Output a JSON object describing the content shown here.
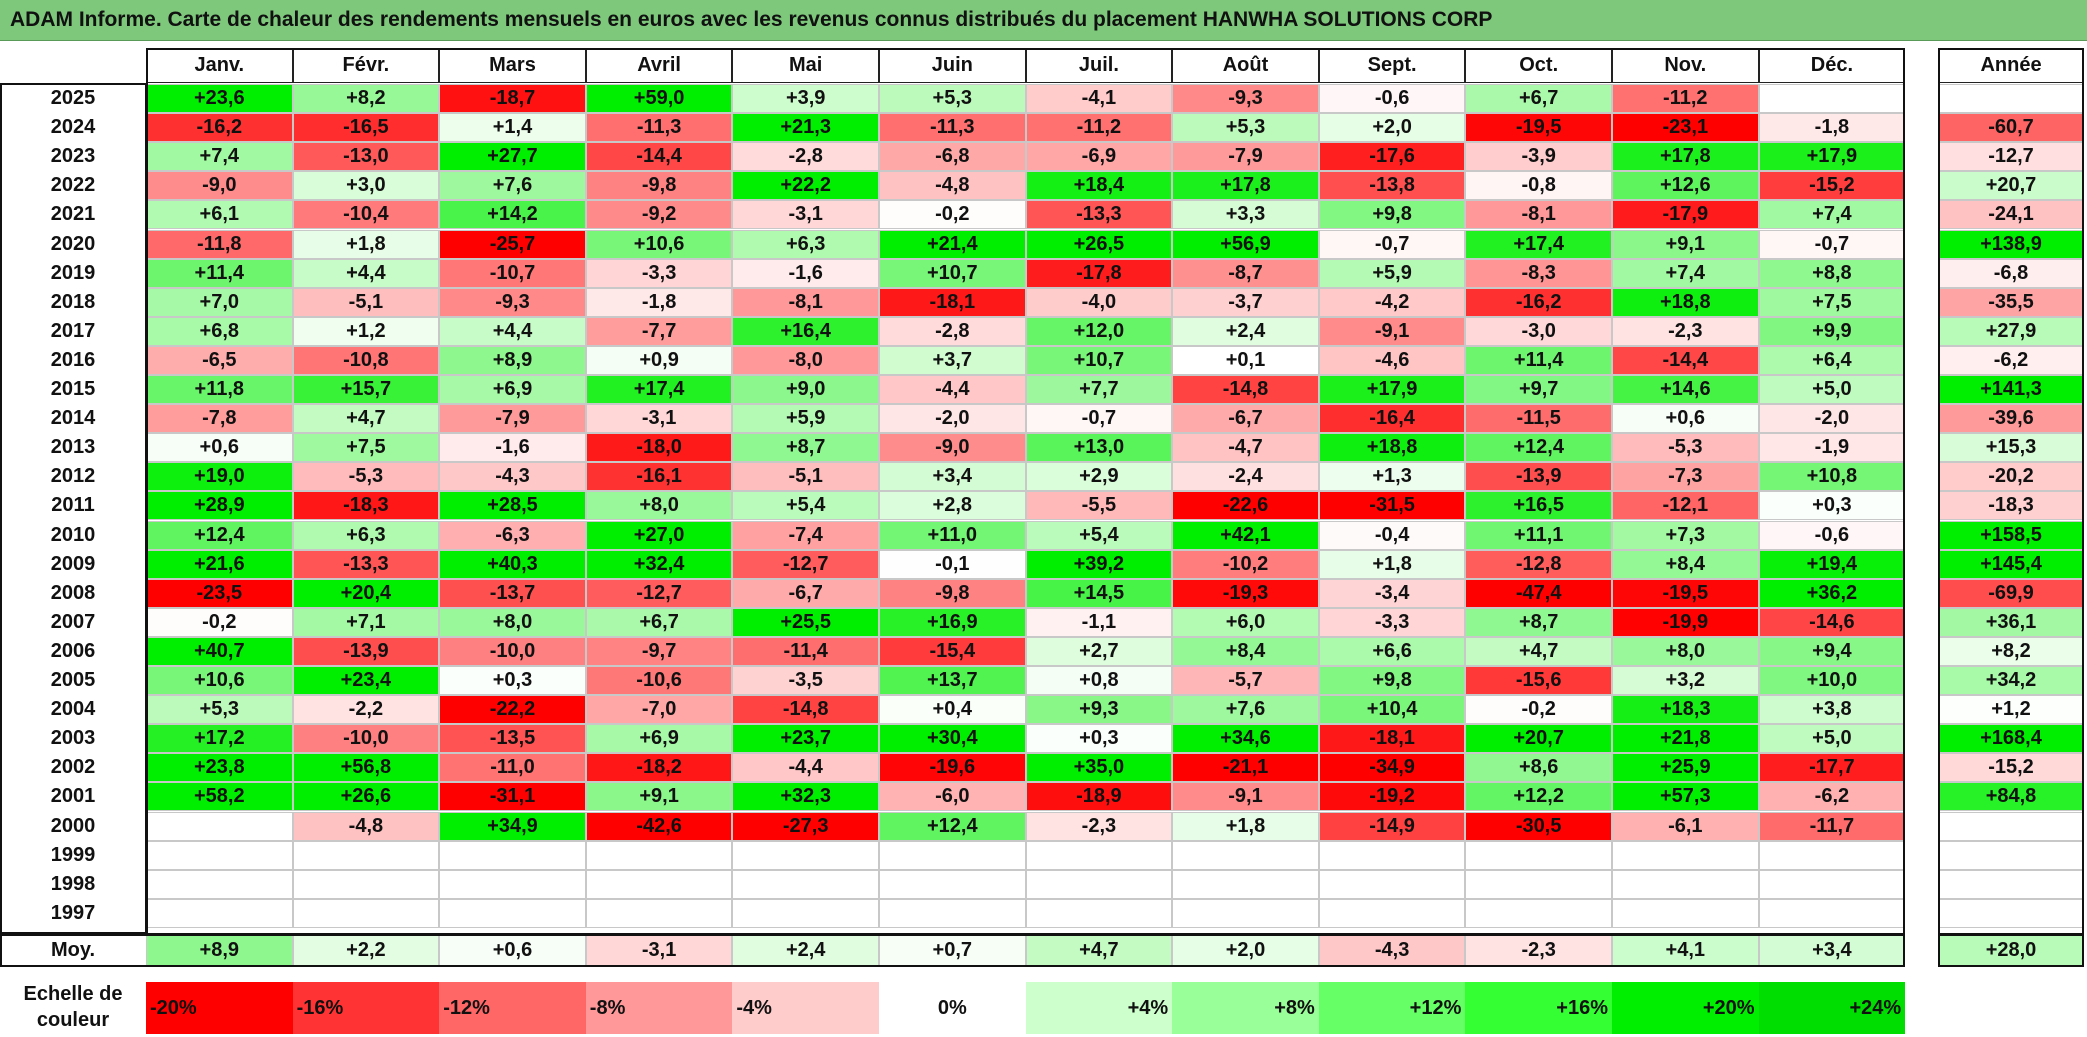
{
  "title": "ADAM Informe. Carte de chaleur des rendements mensuels en euros avec les revenus connus distribués du placement HANWHA SOLUTIONS CORP",
  "chart_data": {
    "type": "heatmap",
    "title": "ADAM Informe. Carte de chaleur des rendements mensuels en euros avec les revenus connus distribués du placement HANWHA SOLUTIONS CORP",
    "columns": [
      "Janv.",
      "Févr.",
      "Mars",
      "Avril",
      "Mai",
      "Juin",
      "Juil.",
      "Août",
      "Sept.",
      "Oct.",
      "Nov.",
      "Déc."
    ],
    "year_column_label": "Année",
    "average_row_label": "Moy.",
    "rows": [
      {
        "year": "2025",
        "values": [
          "+23,6",
          "+8,2",
          "-18,7",
          "+59,0",
          "+3,9",
          "+5,3",
          "-4,1",
          "-9,3",
          "-0,6",
          "+6,7",
          "-11,2",
          ""
        ],
        "annual": ""
      },
      {
        "year": "2024",
        "values": [
          "-16,2",
          "-16,5",
          "+1,4",
          "-11,3",
          "+21,3",
          "-11,3",
          "-11,2",
          "+5,3",
          "+2,0",
          "-19,5",
          "-23,1",
          "-1,8"
        ],
        "annual": "-60,7"
      },
      {
        "year": "2023",
        "values": [
          "+7,4",
          "-13,0",
          "+27,7",
          "-14,4",
          "-2,8",
          "-6,8",
          "-6,9",
          "-7,9",
          "-17,6",
          "-3,9",
          "+17,8",
          "+17,9"
        ],
        "annual": "-12,7"
      },
      {
        "year": "2022",
        "values": [
          "-9,0",
          "+3,0",
          "+7,6",
          "-9,8",
          "+22,2",
          "-4,8",
          "+18,4",
          "+17,8",
          "-13,8",
          "-0,8",
          "+12,6",
          "-15,2"
        ],
        "annual": "+20,7"
      },
      {
        "year": "2021",
        "values": [
          "+6,1",
          "-10,4",
          "+14,2",
          "-9,2",
          "-3,1",
          "-0,2",
          "-13,3",
          "+3,3",
          "+9,8",
          "-8,1",
          "-17,9",
          "+7,4"
        ],
        "annual": "-24,1"
      },
      {
        "year": "2020",
        "values": [
          "-11,8",
          "+1,8",
          "-25,7",
          "+10,6",
          "+6,3",
          "+21,4",
          "+26,5",
          "+56,9",
          "-0,7",
          "+17,4",
          "+9,1",
          "-0,7"
        ],
        "annual": "+138,9"
      },
      {
        "year": "2019",
        "values": [
          "+11,4",
          "+4,4",
          "-10,7",
          "-3,3",
          "-1,6",
          "+10,7",
          "-17,8",
          "-8,7",
          "+5,9",
          "-8,3",
          "+7,4",
          "+8,8"
        ],
        "annual": "-6,8"
      },
      {
        "year": "2018",
        "values": [
          "+7,0",
          "-5,1",
          "-9,3",
          "-1,8",
          "-8,1",
          "-18,1",
          "-4,0",
          "-3,7",
          "-4,2",
          "-16,2",
          "+18,8",
          "+7,5"
        ],
        "annual": "-35,5"
      },
      {
        "year": "2017",
        "values": [
          "+6,8",
          "+1,2",
          "+4,4",
          "-7,7",
          "+16,4",
          "-2,8",
          "+12,0",
          "+2,4",
          "-9,1",
          "-3,0",
          "-2,3",
          "+9,9"
        ],
        "annual": "+27,9"
      },
      {
        "year": "2016",
        "values": [
          "-6,5",
          "-10,8",
          "+8,9",
          "+0,9",
          "-8,0",
          "+3,7",
          "+10,7",
          "+0,1",
          "-4,6",
          "+11,4",
          "-14,4",
          "+6,4"
        ],
        "annual": "-6,2"
      },
      {
        "year": "2015",
        "values": [
          "+11,8",
          "+15,7",
          "+6,9",
          "+17,4",
          "+9,0",
          "-4,4",
          "+7,7",
          "-14,8",
          "+17,9",
          "+9,7",
          "+14,6",
          "+5,0"
        ],
        "annual": "+141,3"
      },
      {
        "year": "2014",
        "values": [
          "-7,8",
          "+4,7",
          "-7,9",
          "-3,1",
          "+5,9",
          "-2,0",
          "-0,7",
          "-6,7",
          "-16,4",
          "-11,5",
          "+0,6",
          "-2,0"
        ],
        "annual": "-39,6"
      },
      {
        "year": "2013",
        "values": [
          "+0,6",
          "+7,5",
          "-1,6",
          "-18,0",
          "+8,7",
          "-9,0",
          "+13,0",
          "-4,7",
          "+18,8",
          "+12,4",
          "-5,3",
          "-1,9"
        ],
        "annual": "+15,3"
      },
      {
        "year": "2012",
        "values": [
          "+19,0",
          "-5,3",
          "-4,3",
          "-16,1",
          "-5,1",
          "+3,4",
          "+2,9",
          "-2,4",
          "+1,3",
          "-13,9",
          "-7,3",
          "+10,8"
        ],
        "annual": "-20,2"
      },
      {
        "year": "2011",
        "values": [
          "+28,9",
          "-18,3",
          "+28,5",
          "+8,0",
          "+5,4",
          "+2,8",
          "-5,5",
          "-22,6",
          "-31,5",
          "+16,5",
          "-12,1",
          "+0,3"
        ],
        "annual": "-18,3"
      },
      {
        "year": "2010",
        "values": [
          "+12,4",
          "+6,3",
          "-6,3",
          "+27,0",
          "-7,4",
          "+11,0",
          "+5,4",
          "+42,1",
          "-0,4",
          "+11,1",
          "+7,3",
          "-0,6"
        ],
        "annual": "+158,5"
      },
      {
        "year": "2009",
        "values": [
          "+21,6",
          "-13,3",
          "+40,3",
          "+32,4",
          "-12,7",
          "-0,1",
          "+39,2",
          "-10,2",
          "+1,8",
          "-12,8",
          "+8,4",
          "+19,4"
        ],
        "annual": "+145,4"
      },
      {
        "year": "2008",
        "values": [
          "-23,5",
          "+20,4",
          "-13,7",
          "-12,7",
          "-6,7",
          "-9,8",
          "+14,5",
          "-19,3",
          "-3,4",
          "-47,4",
          "-19,5",
          "+36,2"
        ],
        "annual": "-69,9"
      },
      {
        "year": "2007",
        "values": [
          "-0,2",
          "+7,1",
          "+8,0",
          "+6,7",
          "+25,5",
          "+16,9",
          "-1,1",
          "+6,0",
          "-3,3",
          "+8,7",
          "-19,9",
          "-14,6"
        ],
        "annual": "+36,1"
      },
      {
        "year": "2006",
        "values": [
          "+40,7",
          "-13,9",
          "-10,0",
          "-9,7",
          "-11,4",
          "-15,4",
          "+2,7",
          "+8,4",
          "+6,6",
          "+4,7",
          "+8,0",
          "+9,4"
        ],
        "annual": "+8,2"
      },
      {
        "year": "2005",
        "values": [
          "+10,6",
          "+23,4",
          "+0,3",
          "-10,6",
          "-3,5",
          "+13,7",
          "+0,8",
          "-5,7",
          "+9,8",
          "-15,6",
          "+3,2",
          "+10,0"
        ],
        "annual": "+34,2"
      },
      {
        "year": "2004",
        "values": [
          "+5,3",
          "-2,2",
          "-22,2",
          "-7,0",
          "-14,8",
          "+0,4",
          "+9,3",
          "+7,6",
          "+10,4",
          "-0,2",
          "+18,3",
          "+3,8"
        ],
        "annual": "+1,2"
      },
      {
        "year": "2003",
        "values": [
          "+17,2",
          "-10,0",
          "-13,5",
          "+6,9",
          "+23,7",
          "+30,4",
          "+0,3",
          "+34,6",
          "-18,1",
          "+20,7",
          "+21,8",
          "+5,0"
        ],
        "annual": "+168,4"
      },
      {
        "year": "2002",
        "values": [
          "+23,8",
          "+56,8",
          "-11,0",
          "-18,2",
          "-4,4",
          "-19,6",
          "+35,0",
          "-21,1",
          "-34,9",
          "+8,6",
          "+25,9",
          "-17,7"
        ],
        "annual": "-15,2"
      },
      {
        "year": "2001",
        "values": [
          "+58,2",
          "+26,6",
          "-31,1",
          "+9,1",
          "+32,3",
          "-6,0",
          "-18,9",
          "-9,1",
          "-19,2",
          "+12,2",
          "+57,3",
          "-6,2"
        ],
        "annual": "+84,8"
      },
      {
        "year": "2000",
        "values": [
          "",
          "-4,8",
          "+34,9",
          "-42,6",
          "-27,3",
          "+12,4",
          "-2,3",
          "+1,8",
          "-14,9",
          "-30,5",
          "-6,1",
          "-11,7"
        ],
        "annual": ""
      },
      {
        "year": "1999",
        "values": [
          "",
          "",
          "",
          "",
          "",
          "",
          "",
          "",
          "",
          "",
          "",
          ""
        ],
        "annual": ""
      },
      {
        "year": "1998",
        "values": [
          "",
          "",
          "",
          "",
          "",
          "",
          "",
          "",
          "",
          "",
          "",
          ""
        ],
        "annual": ""
      },
      {
        "year": "1997",
        "values": [
          "",
          "",
          "",
          "",
          "",
          "",
          "",
          "",
          "",
          "",
          "",
          ""
        ],
        "annual": ""
      }
    ],
    "average": {
      "values": [
        "+8,9",
        "+2,2",
        "+0,6",
        "-3,1",
        "+2,4",
        "+0,7",
        "+4,7",
        "+2,0",
        "-4,3",
        "-2,3",
        "+4,1",
        "+3,4"
      ],
      "annual": "+28,0"
    },
    "color_scale": {
      "label": "Echelle de couleur",
      "stops": [
        {
          "label": "-20%",
          "value": -20,
          "color": "#ff0000"
        },
        {
          "label": "-16%",
          "value": -16,
          "color": "#ff3333"
        },
        {
          "label": "-12%",
          "value": -12,
          "color": "#ff6666"
        },
        {
          "label": "-8%",
          "value": -8,
          "color": "#ff9999"
        },
        {
          "label": "-4%",
          "value": -4,
          "color": "#ffcccc"
        },
        {
          "label": "0%",
          "value": 0,
          "color": "#ffffff"
        },
        {
          "label": "+4%",
          "value": 4,
          "color": "#ccffcc"
        },
        {
          "label": "+8%",
          "value": 8,
          "color": "#99ff99"
        },
        {
          "label": "+12%",
          "value": 12,
          "color": "#66ff66"
        },
        {
          "label": "+16%",
          "value": 16,
          "color": "#33ff33"
        },
        {
          "label": "+20%",
          "value": 20,
          "color": "#00ee00"
        },
        {
          "label": "+24%",
          "value": 24,
          "color": "#00dd00"
        }
      ]
    }
  }
}
